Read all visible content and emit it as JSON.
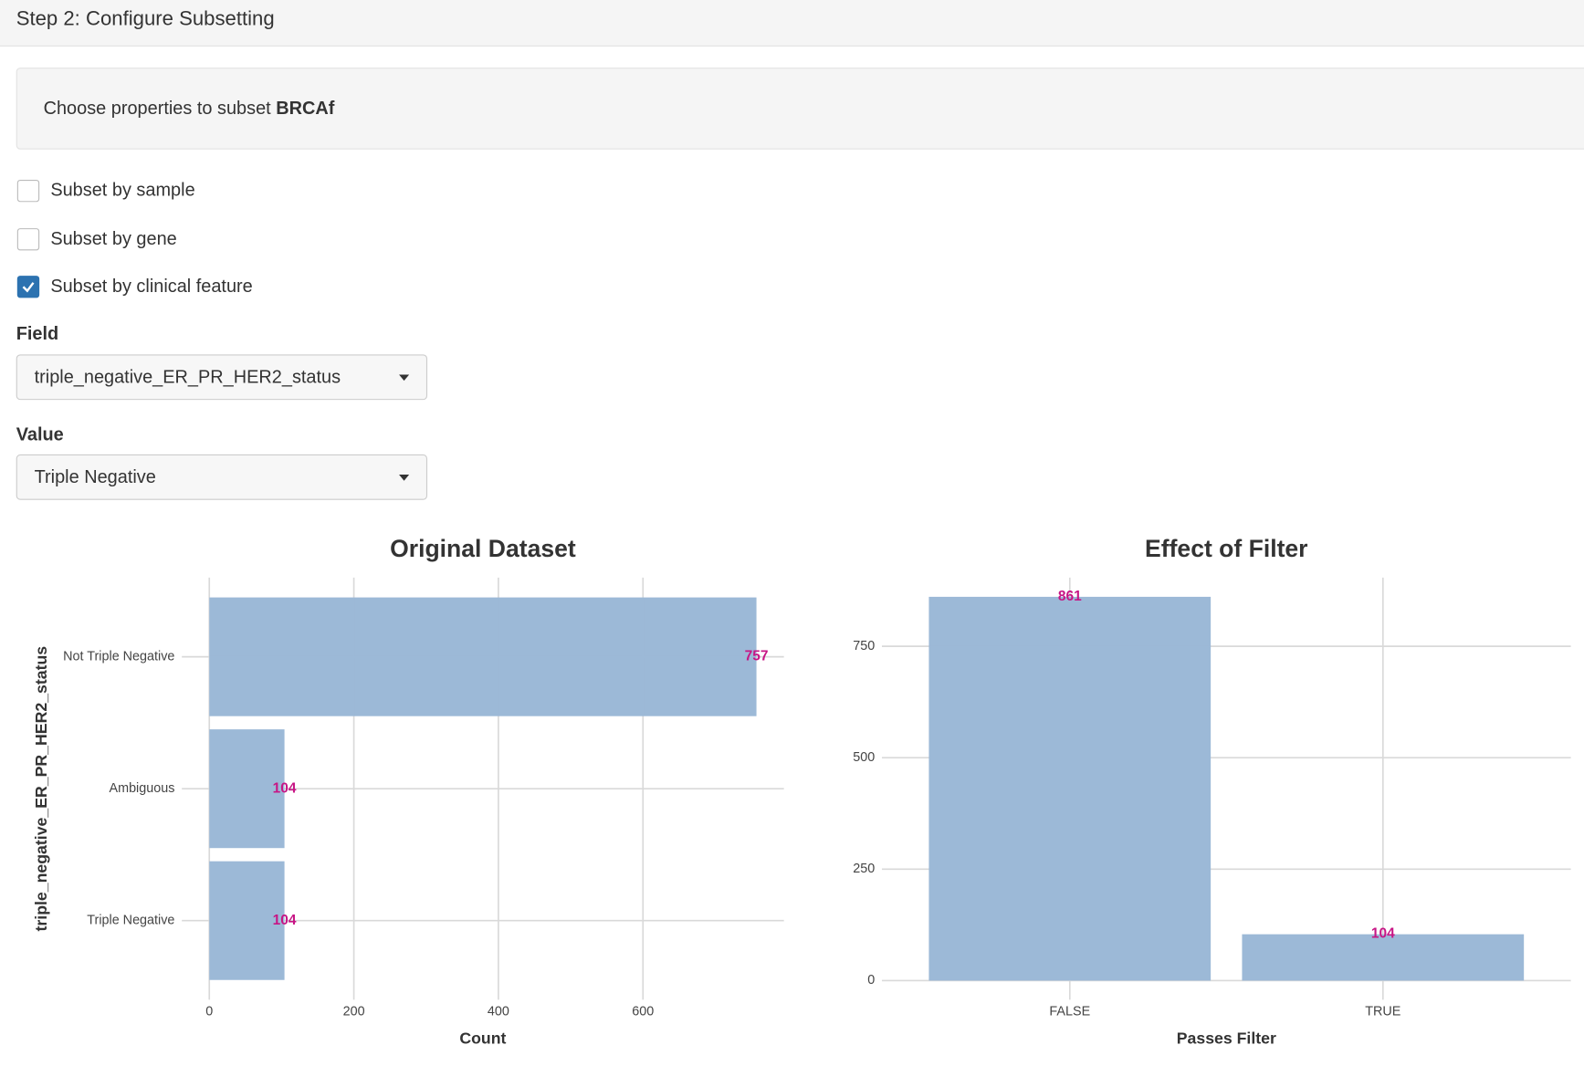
{
  "header": {
    "title": "Step 2: Configure Subsetting"
  },
  "panel": {
    "text": "Choose properties to subset",
    "dataset": "BRCAf"
  },
  "checkboxes": [
    {
      "label": "Subset by sample",
      "checked": false
    },
    {
      "label": "Subset by gene",
      "checked": false
    },
    {
      "label": "Subset by clinical feature",
      "checked": true
    }
  ],
  "field": {
    "label": "Field",
    "value": "triple_negative_ER_PR_HER2_status"
  },
  "value": {
    "label": "Value",
    "value": "Triple Negative"
  },
  "chart_data": [
    {
      "type": "bar",
      "orientation": "horizontal",
      "title": "Original Dataset",
      "x_label": "Count",
      "y_label": "triple_negative_ER_PR_HER2_status",
      "categories": [
        "Not Triple Negative",
        "Ambiguous",
        "Triple Negative"
      ],
      "values": [
        757,
        104,
        104
      ],
      "color": "#9ab8d6",
      "label_color": "#c71585",
      "xlim": [
        -38,
        795
      ],
      "xticks": [
        0,
        200,
        400,
        600
      ],
      "grid": true
    },
    {
      "type": "bar",
      "orientation": "vertical",
      "title": "Effect of Filter",
      "x_label": "Passes Filter",
      "categories": [
        "FALSE",
        "TRUE"
      ],
      "values": [
        861,
        104
      ],
      "color": "#9ab8d6",
      "label_color": "#c71585",
      "ylim": [
        -43,
        904
      ],
      "yticks": [
        0,
        250,
        500,
        750
      ],
      "grid": true
    }
  ]
}
